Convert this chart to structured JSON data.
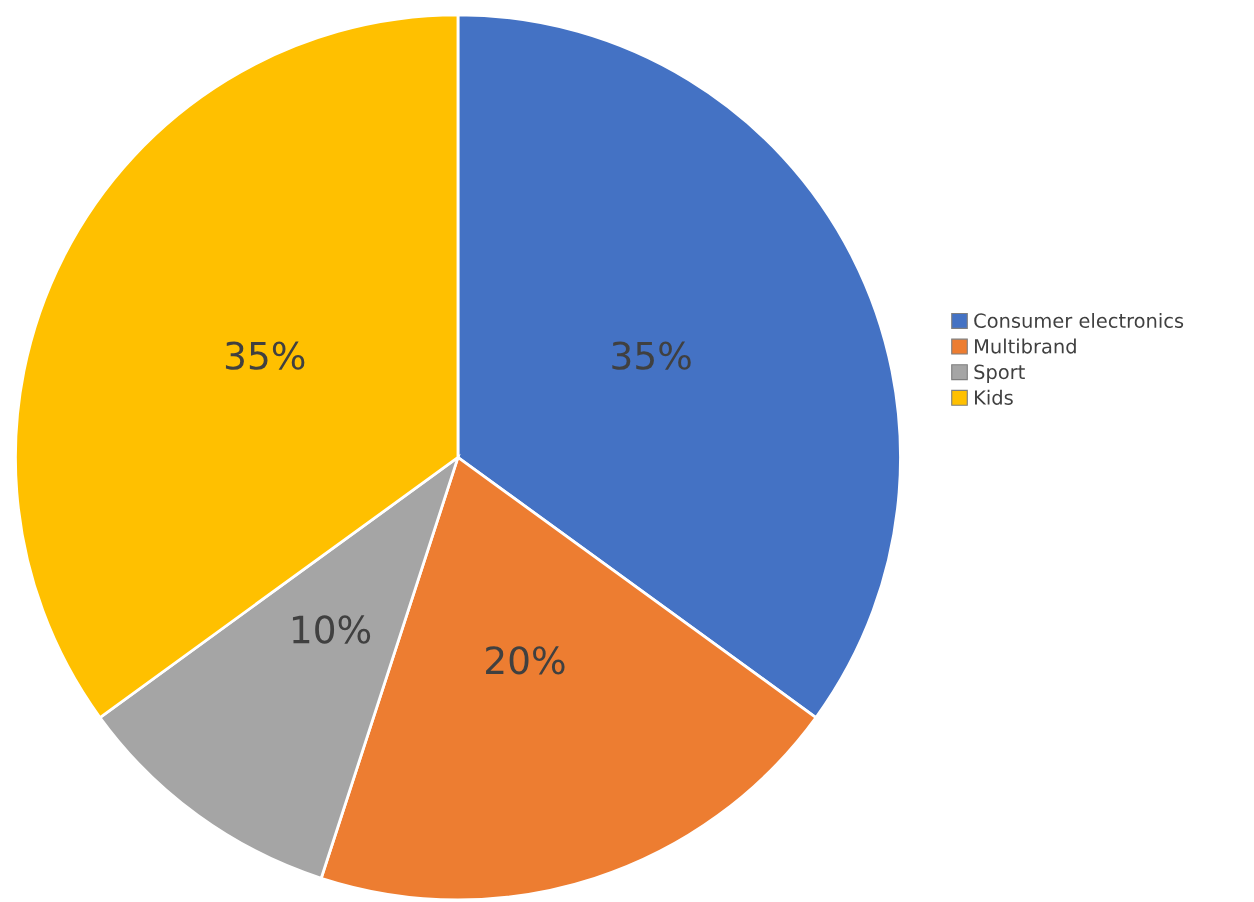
{
  "chart_data": {
    "type": "pie",
    "categories": [
      "Consumer electronics",
      "Multibrand",
      "Sport",
      "Kids"
    ],
    "values": [
      35,
      20,
      10,
      35
    ],
    "colors": [
      "#4472c4",
      "#ed7d31",
      "#a5a5a5",
      "#ffc000"
    ],
    "value_labels": [
      "35%",
      "20%",
      "10%",
      "35%"
    ],
    "legend": "right"
  }
}
